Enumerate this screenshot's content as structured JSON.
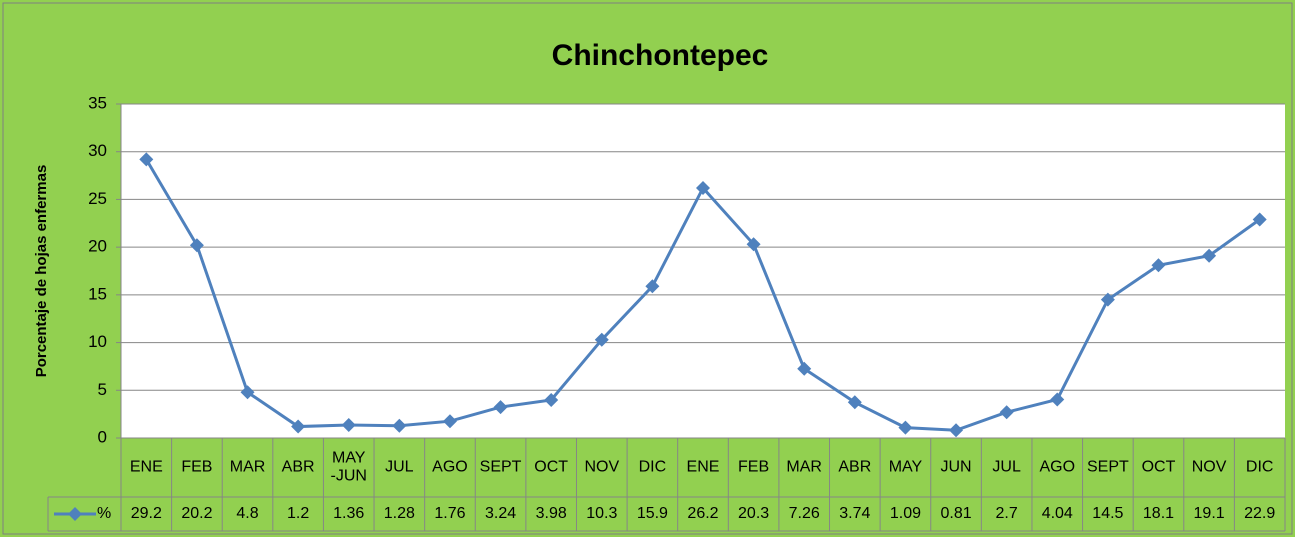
{
  "chart_data": {
    "type": "line",
    "title": "Chinchontepec",
    "y_label": "Porcentaje de hojas enfermas",
    "categories": [
      "ENE",
      "FEB",
      "MAR",
      "ABR",
      "MAY\n-JUN",
      "JUL",
      "AGO",
      "SEPT",
      "OCT",
      "NOV",
      "DIC",
      "ENE",
      "FEB",
      "MAR",
      "ABR",
      "MAY",
      "JUN",
      "JUL",
      "AGO",
      "SEPT",
      "OCT",
      "NOV",
      "DIC"
    ],
    "series": [
      {
        "name": "%",
        "color": "#4f81bd",
        "values": [
          29.2,
          20.2,
          4.8,
          1.2,
          1.36,
          1.28,
          1.76,
          3.24,
          3.98,
          10.3,
          15.9,
          26.2,
          20.3,
          7.26,
          3.74,
          1.09,
          0.81,
          2.7,
          4.04,
          14.5,
          18.1,
          19.1,
          22.9
        ]
      }
    ],
    "ylim": [
      0,
      35
    ],
    "yticks": [
      0,
      5,
      10,
      15,
      20,
      25,
      30,
      35
    ],
    "grid": true,
    "data_table": true
  }
}
